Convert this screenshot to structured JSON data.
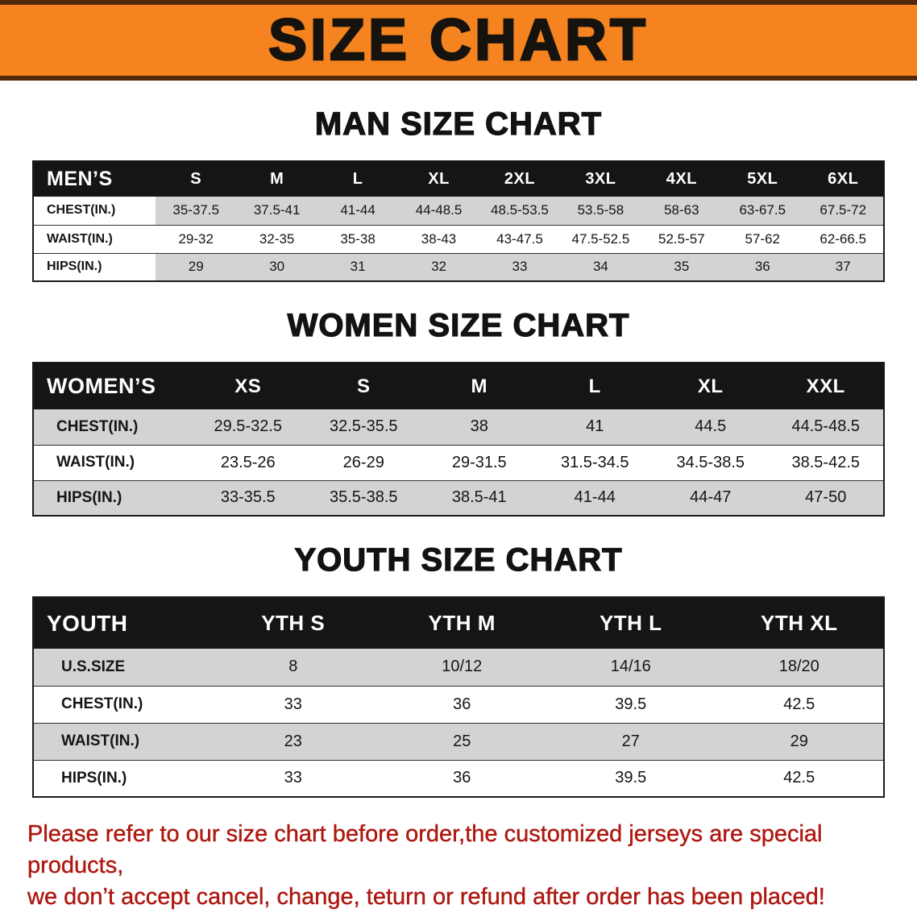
{
  "banner": {
    "title": "SIZE CHART"
  },
  "chart_data": [
    {
      "type": "table",
      "title": "MAN SIZE CHART",
      "header": [
        "MEN’S",
        "S",
        "M",
        "L",
        "XL",
        "2XL",
        "3XL",
        "4XL",
        "5XL",
        "6XL"
      ],
      "rows": [
        [
          "CHEST(IN.)",
          "35-37.5",
          "37.5-41",
          "41-44",
          "44-48.5",
          "48.5-53.5",
          "53.5-58",
          "58-63",
          "63-67.5",
          "67.5-72"
        ],
        [
          "WAIST(IN.)",
          "29-32",
          "32-35",
          "35-38",
          "38-43",
          "43-47.5",
          "47.5-52.5",
          "52.5-57",
          "57-62",
          "62-66.5"
        ],
        [
          "HIPS(IN.)",
          "29",
          "30",
          "31",
          "32",
          "33",
          "34",
          "35",
          "36",
          "37"
        ]
      ]
    },
    {
      "type": "table",
      "title": "WOMEN SIZE CHART",
      "header": [
        "WOMEN’S",
        "XS",
        "S",
        "M",
        "L",
        "XL",
        "XXL"
      ],
      "rows": [
        [
          "CHEST(IN.)",
          "29.5-32.5",
          "32.5-35.5",
          "38",
          "41",
          "44.5",
          "44.5-48.5"
        ],
        [
          "WAIST(IN.)",
          "23.5-26",
          "26-29",
          "29-31.5",
          "31.5-34.5",
          "34.5-38.5",
          "38.5-42.5"
        ],
        [
          "HIPS(IN.)",
          "33-35.5",
          "35.5-38.5",
          "38.5-41",
          "41-44",
          "44-47",
          "47-50"
        ]
      ]
    },
    {
      "type": "table",
      "title": "YOUTH SIZE CHART",
      "header": [
        "YOUTH",
        "YTH S",
        "YTH M",
        "YTH L",
        "YTH XL"
      ],
      "rows": [
        [
          "U.S.SIZE",
          "8",
          "10/12",
          "14/16",
          "18/20"
        ],
        [
          "CHEST(IN.)",
          "33",
          "36",
          "39.5",
          "42.5"
        ],
        [
          "WAIST(IN.)",
          "23",
          "25",
          "27",
          "29"
        ],
        [
          "HIPS(IN.)",
          "33",
          "36",
          "39.5",
          "42.5"
        ]
      ]
    }
  ],
  "footer": {
    "line1": "Please refer to our size chart before order,the customized jerseys are special products,",
    "line2": "we don’t accept cancel, change, teturn or refund after order has been placed!"
  },
  "colors": {
    "banner_orange": "#f5831f",
    "banner_edge": "#51280a",
    "header_black": "#151515",
    "row_gray": "#d3d3d3",
    "footer_red": "#ae1810"
  }
}
